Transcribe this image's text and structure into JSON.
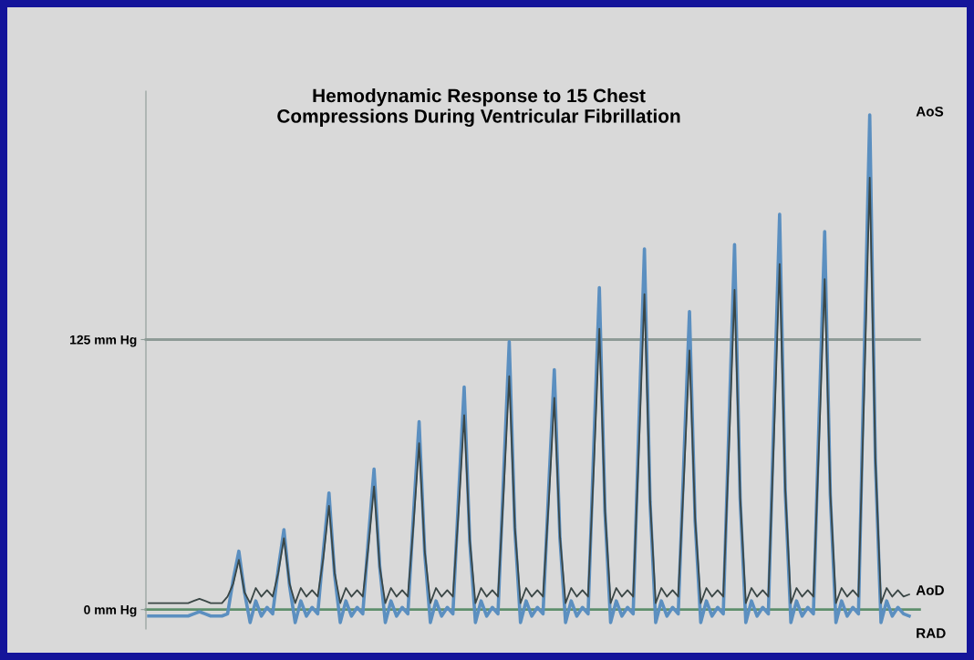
{
  "chart_data": {
    "type": "line",
    "title": "Hemodynamic Response to 15 Chest\nCompressions During Ventricular Fibrillation",
    "categories": [
      null,
      null,
      null,
      null,
      null,
      null,
      null,
      null,
      null,
      null,
      null,
      null,
      null,
      null,
      null,
      null,
      null,
      null,
      null,
      null,
      null,
      null,
      null,
      null,
      null,
      null,
      null,
      null,
      null,
      null,
      null,
      null,
      null,
      null,
      null,
      null,
      null,
      null,
      null,
      null,
      null,
      null,
      null,
      null,
      null,
      null,
      null,
      null,
      null,
      null,
      null,
      null,
      null,
      null,
      null,
      null,
      null,
      null,
      null,
      null,
      null,
      null,
      null,
      null,
      null,
      null,
      null,
      null,
      null,
      null,
      null,
      null,
      null,
      null,
      null,
      null,
      null,
      null,
      null,
      null,
      null,
      null,
      null,
      null,
      null,
      null,
      null,
      null,
      null,
      null,
      null,
      null,
      null,
      null,
      null,
      null,
      null,
      null,
      null,
      null,
      null,
      null,
      null,
      null,
      null,
      null,
      null,
      null,
      null,
      null,
      null,
      null,
      null,
      null,
      null,
      null,
      null,
      null,
      null,
      null,
      null,
      null,
      null,
      null,
      null,
      null,
      null,
      null,
      null,
      null,
      null,
      null,
      null,
      null,
      null,
      null
    ],
    "series": [
      {
        "color": "#3a4645",
        "values": [
          3,
          3,
          3,
          3,
          3,
          3,
          3,
          3,
          4,
          5,
          4,
          3,
          3,
          3,
          6,
          12,
          23,
          8,
          3,
          10,
          6,
          9,
          6,
          17,
          33,
          12,
          3,
          10,
          6,
          9,
          6,
          24,
          48,
          17,
          3,
          10,
          6,
          9,
          6,
          29,
          57,
          20,
          3,
          10,
          6,
          9,
          6,
          39,
          77,
          27,
          3,
          10,
          6,
          9,
          6,
          45,
          90,
          32,
          3,
          10,
          6,
          9,
          6,
          54,
          108,
          38,
          3,
          10,
          6,
          9,
          6,
          49,
          98,
          34,
          3,
          10,
          6,
          9,
          6,
          65,
          130,
          46,
          3,
          10,
          6,
          9,
          6,
          73,
          146,
          51,
          3,
          10,
          6,
          9,
          6,
          60,
          120,
          42,
          3,
          10,
          6,
          9,
          6,
          74,
          148,
          52,
          3,
          10,
          6,
          9,
          6,
          80,
          160,
          56,
          3,
          10,
          6,
          9,
          6,
          77,
          153,
          54,
          3,
          10,
          6,
          9,
          6,
          100,
          200,
          70,
          3,
          10,
          6,
          9,
          6,
          7
        ]
      },
      {
        "color": "#5b8fc0",
        "values": [
          -3,
          -3,
          -3,
          -3,
          -3,
          -3,
          -3,
          -3,
          -2,
          -1,
          -2,
          -3,
          -3,
          -3,
          -2,
          14,
          27,
          8,
          -6,
          4,
          -3,
          1,
          -2,
          19,
          37,
          11,
          -6,
          4,
          -3,
          1,
          -2,
          27,
          54,
          16,
          -6,
          4,
          -3,
          1,
          -2,
          33,
          65,
          20,
          -6,
          4,
          -3,
          1,
          -2,
          44,
          87,
          26,
          -6,
          4,
          -3,
          1,
          -2,
          52,
          103,
          31,
          -6,
          4,
          -3,
          1,
          -2,
          62,
          124,
          37,
          -6,
          4,
          -3,
          1,
          -2,
          56,
          111,
          33,
          -6,
          4,
          -3,
          1,
          -2,
          75,
          149,
          45,
          -6,
          4,
          -3,
          1,
          -2,
          84,
          167,
          50,
          -6,
          4,
          -3,
          1,
          -2,
          69,
          138,
          41,
          -6,
          4,
          -3,
          1,
          -2,
          85,
          169,
          51,
          -6,
          4,
          -3,
          1,
          -2,
          92,
          183,
          55,
          -6,
          4,
          -3,
          1,
          -2,
          88,
          175,
          53,
          -6,
          4,
          -3,
          1,
          -2,
          115,
          229,
          69,
          -6,
          4,
          -3,
          1,
          -2,
          -3
        ]
      }
    ],
    "ref_lines": [
      {
        "axis": "y",
        "value": 125,
        "color": "#8e9b97"
      },
      {
        "axis": "y",
        "value": 0,
        "color": "#5e8f6c"
      }
    ],
    "ylim": [
      -9,
      240
    ],
    "yticks": [
      {
        "value": 0,
        "label": "0 mm Hg"
      },
      {
        "value": 125,
        "label": "125 mm Hg"
      }
    ],
    "annotations": [
      "AoS",
      "AoD",
      "RAD"
    ],
    "grid": false,
    "legend": false,
    "marker": "none",
    "line_style": "solid"
  }
}
